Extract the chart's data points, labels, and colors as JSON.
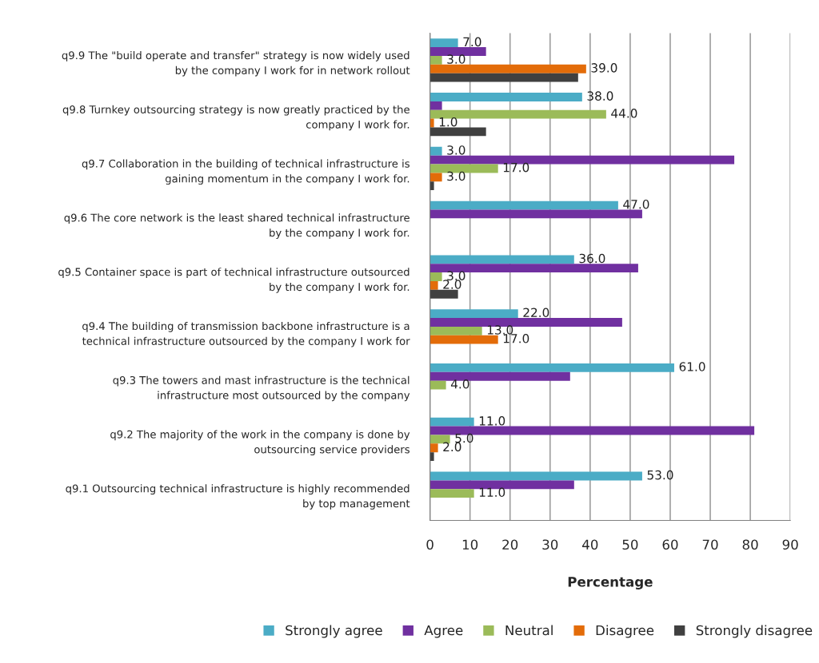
{
  "chart_data": {
    "type": "bar",
    "orientation": "horizontal",
    "xlabel": "Percentage",
    "categories": [
      "q9.9 The \"build operate and transfer\" strategy is now widely used\nby the company I work for in network rollout",
      "q9.8 Turnkey outsourcing strategy is now greatly practiced by the\ncompany I work for.",
      "q9.7 Collaboration in the building of technical infrastructure is\ngaining momentum in the company I work for.",
      "q9.6 The core network is the least shared technical infrastructure\nby the company I work for.",
      "q9.5 Container space is part of technical infrastructure outsourced\nby the company I work for.",
      "q9.4 The building of transmission backbone infrastructure is a\ntechnical infrastructure outsourced by the company I work for",
      "q9.3 The towers and mast infrastructure is the technical\ninfrastructure most outsourced by the company",
      "q9.2 The majority of the work in the company is done by\noutsourcing service providers",
      "q9.1 Outsourcing technical infrastructure is highly recommended\nby top management"
    ],
    "series": [
      {
        "name": "Strongly agree",
        "color": "#4bacc6",
        "values": [
          7,
          38,
          3,
          47,
          36,
          22,
          61,
          11,
          53
        ],
        "value_labels": [
          "7.0",
          "38.0",
          "3.0",
          "47.0",
          "36.0",
          "22.0",
          "61.0",
          "11.0",
          "53.0"
        ]
      },
      {
        "name": "Agree",
        "color": "#7030a0",
        "values": [
          14,
          3,
          76,
          53,
          52,
          48,
          35,
          81,
          36
        ]
      },
      {
        "name": "Neutral",
        "color": "#9bbb59",
        "values": [
          3,
          44,
          17,
          null,
          3,
          13,
          4,
          5,
          11
        ],
        "value_labels": [
          "3.0",
          "44.0",
          "17.0",
          null,
          "3.0",
          "13.0",
          "4.0",
          "5.0",
          "11.0"
        ]
      },
      {
        "name": "Disagree",
        "color": "#e36c09",
        "values": [
          39,
          1,
          3,
          null,
          2,
          17,
          null,
          2,
          null
        ],
        "value_labels": [
          "39.0",
          "1.0",
          "3.0",
          null,
          "2.0",
          "17.0",
          null,
          "2.0",
          null
        ]
      },
      {
        "name": "Strongly disagree",
        "color": "#404040",
        "values": [
          37,
          14,
          1,
          null,
          7,
          null,
          null,
          1,
          null
        ]
      }
    ],
    "xlim": [
      0,
      90
    ],
    "xticks": [
      0,
      10,
      20,
      30,
      40,
      50,
      60,
      70,
      80,
      90
    ],
    "grid": "x",
    "legend": "bottom"
  }
}
